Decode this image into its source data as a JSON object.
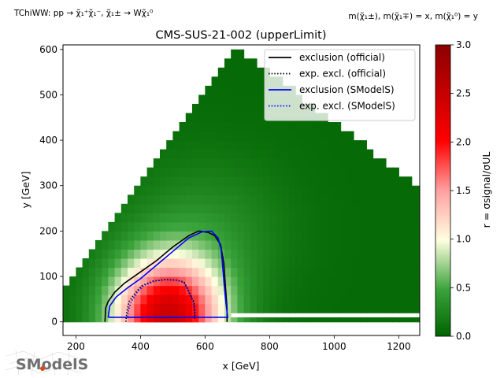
{
  "chart_data": {
    "type": "heatmap",
    "title": "CMS-SUS-21-002 (upperLimit)",
    "subtitle_left": "TChiWW: pp → χ̃₁⁺χ̃₁⁻, χ̃₁± → Wχ̃₁⁰",
    "subtitle_right": "m(χ̃₁±), m(χ̃₁∓) = x, m(χ̃₁⁰) = y",
    "xlabel": "x [GeV]",
    "ylabel": "y [GeV]",
    "xlim": [
      160,
      1265
    ],
    "ylim": [
      -30,
      610
    ],
    "xticks": [
      200,
      400,
      600,
      800,
      1000,
      1200
    ],
    "yticks": [
      0,
      100,
      200,
      300,
      400,
      500,
      600
    ],
    "colorbar": {
      "label": "r = σsignal/σUL",
      "range": [
        0,
        3
      ],
      "ticks": [
        "0.0",
        "0.5",
        "1.0",
        "1.5",
        "2.0",
        "2.5",
        "3.0"
      ],
      "colors": [
        "#006400",
        "#90ee90",
        "#ffffe0",
        "#ffa0a0",
        "#ff0000",
        "#8b0000"
      ]
    },
    "legend": {
      "placement": "top-right",
      "entries": [
        {
          "label": "exclusion (official)",
          "color": "#000000",
          "style": "solid"
        },
        {
          "label": "exp. excl. (official)",
          "color": "#000000",
          "style": "dotted"
        },
        {
          "label": "exclusion (SModelS)",
          "color": "#0000ff",
          "style": "solid"
        },
        {
          "label": "exp. excl. (SModelS)",
          "color": "#0000ff",
          "style": "dotted"
        }
      ]
    },
    "series": [
      {
        "name": "exclusion (official)",
        "points": [
          [
            290,
            0
          ],
          [
            292,
            30
          ],
          [
            300,
            45
          ],
          [
            320,
            65
          ],
          [
            350,
            85
          ],
          [
            400,
            110
          ],
          [
            450,
            135
          ],
          [
            500,
            165
          ],
          [
            550,
            190
          ],
          [
            580,
            200
          ],
          [
            610,
            197
          ],
          [
            630,
            190
          ],
          [
            648,
            170
          ],
          [
            658,
            130
          ],
          [
            663,
            80
          ],
          [
            668,
            30
          ],
          [
            668,
            0
          ]
        ]
      },
      {
        "name": "exp. excl. (official)",
        "points": [
          [
            355,
            0
          ],
          [
            358,
            25
          ],
          [
            365,
            45
          ],
          [
            385,
            65
          ],
          [
            405,
            80
          ],
          [
            440,
            90
          ],
          [
            475,
            93
          ],
          [
            510,
            92
          ],
          [
            535,
            88
          ],
          [
            547,
            70
          ],
          [
            556,
            55
          ],
          [
            565,
            45
          ],
          [
            568,
            30
          ],
          [
            568,
            5
          ]
        ]
      },
      {
        "name": "exclusion (SModelS)",
        "points": [
          [
            300,
            10
          ],
          [
            305,
            35
          ],
          [
            325,
            55
          ],
          [
            360,
            75
          ],
          [
            400,
            95
          ],
          [
            450,
            125
          ],
          [
            500,
            155
          ],
          [
            550,
            185
          ],
          [
            590,
            198
          ],
          [
            620,
            200
          ],
          [
            640,
            185
          ],
          [
            650,
            160
          ],
          [
            655,
            120
          ],
          [
            660,
            75
          ],
          [
            665,
            40
          ],
          [
            670,
            10
          ],
          [
            300,
            10
          ]
        ]
      },
      {
        "name": "exp. excl. (SModelS)",
        "points": [
          [
            360,
            10
          ],
          [
            362,
            25
          ],
          [
            372,
            45
          ],
          [
            390,
            65
          ],
          [
            410,
            80
          ],
          [
            445,
            90
          ],
          [
            480,
            93
          ],
          [
            515,
            92
          ],
          [
            535,
            86
          ],
          [
            548,
            70
          ],
          [
            558,
            55
          ],
          [
            565,
            40
          ],
          [
            568,
            10
          ],
          [
            360,
            10
          ]
        ]
      }
    ]
  },
  "logo_text": "SModelS"
}
